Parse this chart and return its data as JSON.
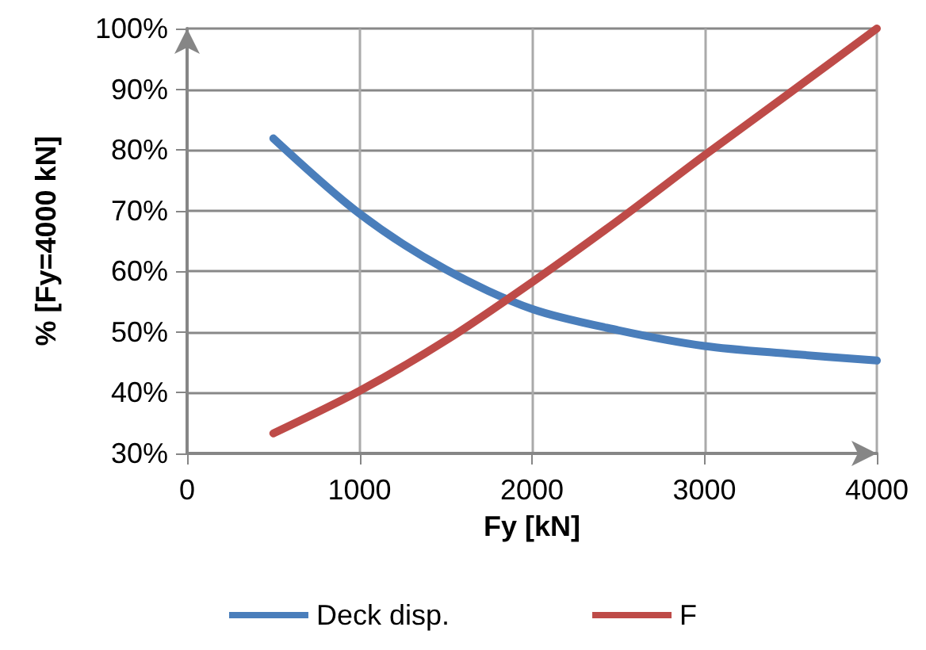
{
  "chart_data": {
    "type": "line",
    "xlabel": "Fy [kN]",
    "ylabel": "% [Fy=4000 kN]",
    "x": [
      500,
      1000,
      1500,
      2000,
      2500,
      3000,
      3500,
      4000
    ],
    "series": [
      {
        "name": "Deck disp.",
        "color": "#4a7ebb",
        "values": [
          81.9,
          69.5,
          60.3,
          53.8,
          50.3,
          47.7,
          46.4,
          45.3
        ]
      },
      {
        "name": "F",
        "color": "#be4b48",
        "values": [
          33.3,
          40.3,
          48.6,
          58.2,
          68.4,
          79.1,
          89.5,
          100
        ]
      }
    ],
    "xlim": [
      0,
      4000
    ],
    "xticks": [
      0,
      1000,
      2000,
      3000,
      4000
    ],
    "ylim": [
      30,
      100
    ],
    "yticks": [
      {
        "value": 30,
        "label": "30%"
      },
      {
        "value": 40,
        "label": "40%"
      },
      {
        "value": 50,
        "label": "50%"
      },
      {
        "value": 60,
        "label": "60%"
      },
      {
        "value": 70,
        "label": "70%"
      },
      {
        "value": 80,
        "label": "80%"
      },
      {
        "value": 90,
        "label": "90%"
      },
      {
        "value": 100,
        "label": "100%"
      }
    ],
    "grid": true,
    "legend": "bottom",
    "marker": "none",
    "line_style": "solid"
  }
}
